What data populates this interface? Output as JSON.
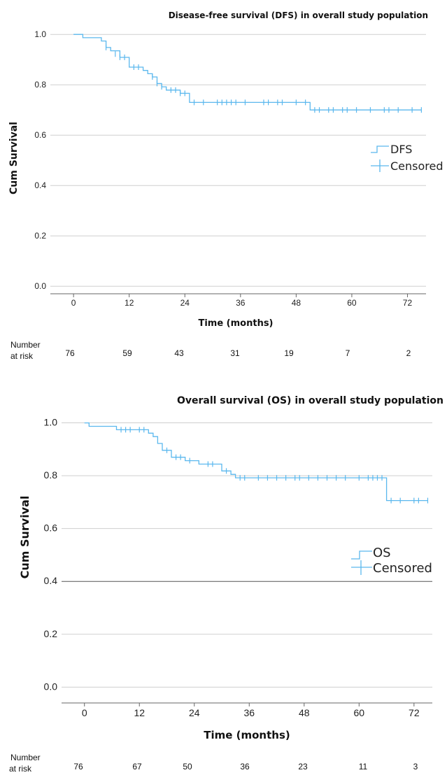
{
  "chart_data": [
    {
      "type": "line",
      "subtype": "kaplan-meier",
      "title": "Disease-free survival (DFS) in overall study population",
      "xlabel": "Time (months)",
      "ylabel": "Cum Survival",
      "xlim": [
        -5,
        76
      ],
      "ylim": [
        -0.03,
        1.02
      ],
      "x_ticks": [
        "0",
        "12",
        "24",
        "36",
        "48",
        "60",
        "72"
      ],
      "y_ticks": [
        "0.0",
        "0.2",
        "0.4",
        "0.6",
        "0.8",
        "1.0"
      ],
      "grid": "horizontal",
      "legend_position": "right",
      "legend": [
        "DFS",
        "Censored"
      ],
      "series_color": "#5bb8ee",
      "series": [
        {
          "name": "DFS",
          "steps": [
            [
              0,
              1.0
            ],
            [
              2,
              0.987
            ],
            [
              6,
              0.974
            ],
            [
              7,
              0.948
            ],
            [
              8,
              0.935
            ],
            [
              10,
              0.909
            ],
            [
              12,
              0.87
            ],
            [
              15,
              0.857
            ],
            [
              16,
              0.844
            ],
            [
              17,
              0.831
            ],
            [
              18,
              0.805
            ],
            [
              19,
              0.792
            ],
            [
              20,
              0.779
            ],
            [
              23,
              0.766
            ],
            [
              25,
              0.73
            ],
            [
              51,
              0.7
            ]
          ],
          "end_x": 75,
          "censored": [
            [
              7,
              0.948
            ],
            [
              9,
              0.922
            ],
            [
              10,
              0.909
            ],
            [
              11,
              0.909
            ],
            [
              13,
              0.87
            ],
            [
              14,
              0.87
            ],
            [
              17,
              0.831
            ],
            [
              18,
              0.805
            ],
            [
              19,
              0.792
            ],
            [
              21,
              0.779
            ],
            [
              22,
              0.779
            ],
            [
              23,
              0.766
            ],
            [
              24,
              0.766
            ],
            [
              26,
              0.73
            ],
            [
              28,
              0.73
            ],
            [
              31,
              0.73
            ],
            [
              32,
              0.73
            ],
            [
              33,
              0.73
            ],
            [
              34,
              0.73
            ],
            [
              35,
              0.73
            ],
            [
              37,
              0.73
            ],
            [
              41,
              0.73
            ],
            [
              42,
              0.73
            ],
            [
              44,
              0.73
            ],
            [
              45,
              0.73
            ],
            [
              48,
              0.73
            ],
            [
              50,
              0.73
            ],
            [
              52,
              0.7
            ],
            [
              53,
              0.7
            ],
            [
              55,
              0.7
            ],
            [
              56,
              0.7
            ],
            [
              58,
              0.7
            ],
            [
              59,
              0.7
            ],
            [
              61,
              0.7
            ],
            [
              64,
              0.7
            ],
            [
              67,
              0.7
            ],
            [
              68,
              0.7
            ],
            [
              70,
              0.7
            ],
            [
              73,
              0.7
            ],
            [
              75,
              0.7
            ]
          ]
        }
      ],
      "number_at_risk_label": [
        "Number",
        "at risk"
      ],
      "number_at_risk": [
        "76",
        "59",
        "43",
        "31",
        "19",
        "7",
        "2"
      ]
    },
    {
      "type": "line",
      "subtype": "kaplan-meier",
      "title": "Overall survival (OS) in overall study population",
      "xlabel": "Time (months)",
      "ylabel": "Cum Survival",
      "xlim": [
        -5,
        76
      ],
      "ylim": [
        -0.06,
        1.02
      ],
      "x_ticks": [
        "0",
        "12",
        "24",
        "36",
        "48",
        "60",
        "72"
      ],
      "y_ticks": [
        "0.0",
        "0.2",
        "0.4",
        "0.6",
        "0.8",
        "1.0"
      ],
      "grid": "horizontal",
      "legend_position": "right",
      "legend": [
        "OS",
        "Censored"
      ],
      "series_color": "#5bb8ee",
      "series": [
        {
          "name": "OS",
          "steps": [
            [
              0,
              1.0
            ],
            [
              1,
              0.987
            ],
            [
              7,
              0.974
            ],
            [
              14,
              0.961
            ],
            [
              15,
              0.948
            ],
            [
              16,
              0.922
            ],
            [
              17,
              0.896
            ],
            [
              19,
              0.87
            ],
            [
              22,
              0.857
            ],
            [
              25,
              0.844
            ],
            [
              30,
              0.818
            ],
            [
              32,
              0.805
            ],
            [
              33,
              0.792
            ],
            [
              66,
              0.706
            ]
          ],
          "end_x": 75,
          "censored": [
            [
              8,
              0.974
            ],
            [
              9,
              0.974
            ],
            [
              10,
              0.974
            ],
            [
              12,
              0.974
            ],
            [
              13,
              0.974
            ],
            [
              18,
              0.896
            ],
            [
              20,
              0.87
            ],
            [
              21,
              0.87
            ],
            [
              23,
              0.857
            ],
            [
              27,
              0.844
            ],
            [
              28,
              0.844
            ],
            [
              31,
              0.818
            ],
            [
              34,
              0.792
            ],
            [
              35,
              0.792
            ],
            [
              38,
              0.792
            ],
            [
              40,
              0.792
            ],
            [
              42,
              0.792
            ],
            [
              44,
              0.792
            ],
            [
              46,
              0.792
            ],
            [
              47,
              0.792
            ],
            [
              49,
              0.792
            ],
            [
              51,
              0.792
            ],
            [
              53,
              0.792
            ],
            [
              55,
              0.792
            ],
            [
              57,
              0.792
            ],
            [
              60,
              0.792
            ],
            [
              62,
              0.792
            ],
            [
              63,
              0.792
            ],
            [
              64,
              0.792
            ],
            [
              65,
              0.792
            ],
            [
              67,
              0.706
            ],
            [
              69,
              0.706
            ],
            [
              72,
              0.706
            ],
            [
              73,
              0.706
            ],
            [
              75,
              0.706
            ]
          ]
        }
      ],
      "number_at_risk_label": [
        "Number",
        "at risk"
      ],
      "number_at_risk": [
        "76",
        "67",
        "50",
        "36",
        "23",
        "11",
        "3"
      ]
    }
  ]
}
